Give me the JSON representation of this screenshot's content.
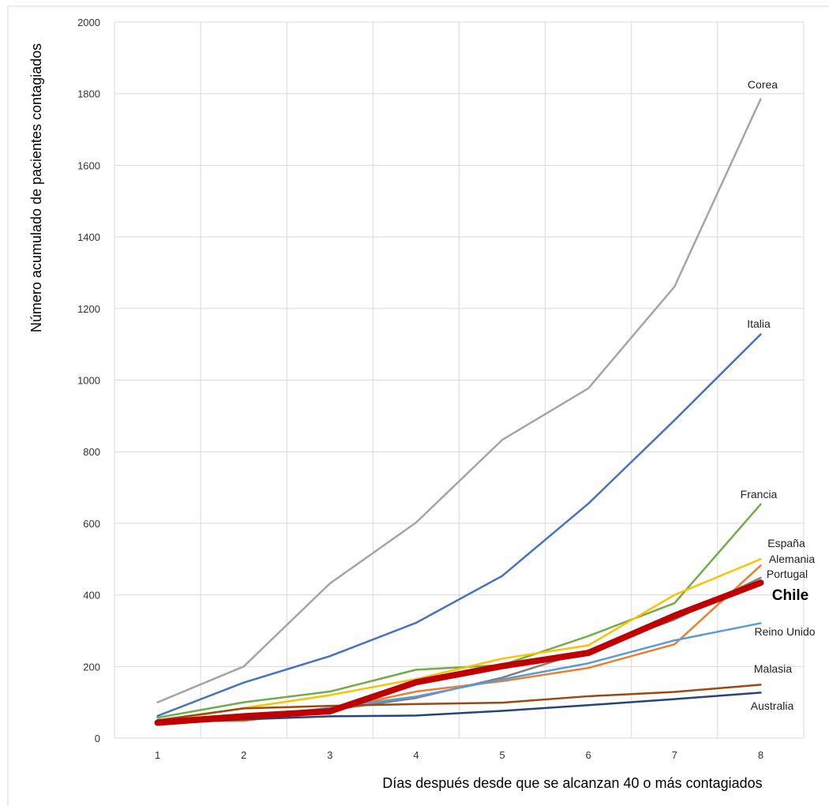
{
  "chart_data": {
    "type": "line",
    "title": "",
    "xlabel": "Días después desde que se alcanzan 40 o más contagiados",
    "ylabel": "Número acumulado de pacientes contagiados",
    "x": [
      1,
      2,
      3,
      4,
      5,
      6,
      7,
      8
    ],
    "xlim": [
      0.5,
      8.5
    ],
    "ylim": [
      0,
      2000
    ],
    "y_ticks": [
      0,
      200,
      400,
      600,
      800,
      1000,
      1200,
      1400,
      1600,
      1800,
      2000
    ],
    "x_ticks": [
      1,
      2,
      3,
      4,
      5,
      6,
      7,
      8
    ],
    "grid": true,
    "legend": "none",
    "series": [
      {
        "name": "Corea",
        "color": "#a5a5a5",
        "width": 2.5,
        "values": [
          100,
          200,
          432,
          602,
          833,
          977,
          1261,
          1785
        ]
      },
      {
        "name": "Italia",
        "color": "#4472c4",
        "width": 2.5,
        "values": [
          62,
          155,
          229,
          322,
          453,
          655,
          888,
          1128
        ]
      },
      {
        "name": "Francia",
        "color": "#70ad47",
        "width": 2.5,
        "values": [
          57,
          100,
          130,
          191,
          204,
          285,
          377,
          653
        ]
      },
      {
        "name": "España",
        "color": "#ffc000",
        "width": 2.5,
        "values": [
          45,
          84,
          120,
          165,
          222,
          259,
          400,
          500
        ]
      },
      {
        "name": "Alemania",
        "color": "#ed7d31",
        "width": 2.5,
        "values": [
          48,
          48,
          79,
          130,
          159,
          196,
          262,
          482
        ]
      },
      {
        "name": "Portugal",
        "color": "#7f7f7f",
        "width": 2.5,
        "values": [
          41,
          59,
          78,
          112,
          169,
          245,
          331,
          448
        ]
      },
      {
        "name": "Reino Unido",
        "color": "#5b9bd5",
        "width": 2.5,
        "values": [
          51,
          56,
          85,
          116,
          164,
          209,
          273,
          321
        ]
      },
      {
        "name": "Malasia",
        "color": "#9e480e",
        "width": 2.5,
        "values": [
          50,
          83,
          90,
          95,
          99,
          117,
          129,
          149
        ]
      },
      {
        "name": "Australia",
        "color": "#264478",
        "width": 2.5,
        "values": [
          40,
          52,
          61,
          63,
          76,
          92,
          109,
          127
        ]
      },
      {
        "name": "Chile",
        "color": "#c00000",
        "width": 8,
        "values": [
          43,
          61,
          75,
          156,
          201,
          238,
          342,
          434
        ]
      }
    ],
    "annotations": [
      {
        "series": "Corea",
        "text": "Corea",
        "emphasis": false
      },
      {
        "series": "Italia",
        "text": "Italia",
        "emphasis": false
      },
      {
        "series": "Francia",
        "text": "Francia",
        "emphasis": false
      },
      {
        "series": "España",
        "text": "España",
        "emphasis": false
      },
      {
        "series": "Alemania",
        "text": "Alemania",
        "emphasis": false
      },
      {
        "series": "Portugal",
        "text": "Portugal",
        "emphasis": false
      },
      {
        "series": "Chile",
        "text": "Chile",
        "emphasis": true
      },
      {
        "series": "Reino Unido",
        "text": "Reino Unido",
        "emphasis": false
      },
      {
        "series": "Malasia",
        "text": "Malasia",
        "emphasis": false
      },
      {
        "series": "Australia",
        "text": "Australia",
        "emphasis": false
      }
    ]
  }
}
